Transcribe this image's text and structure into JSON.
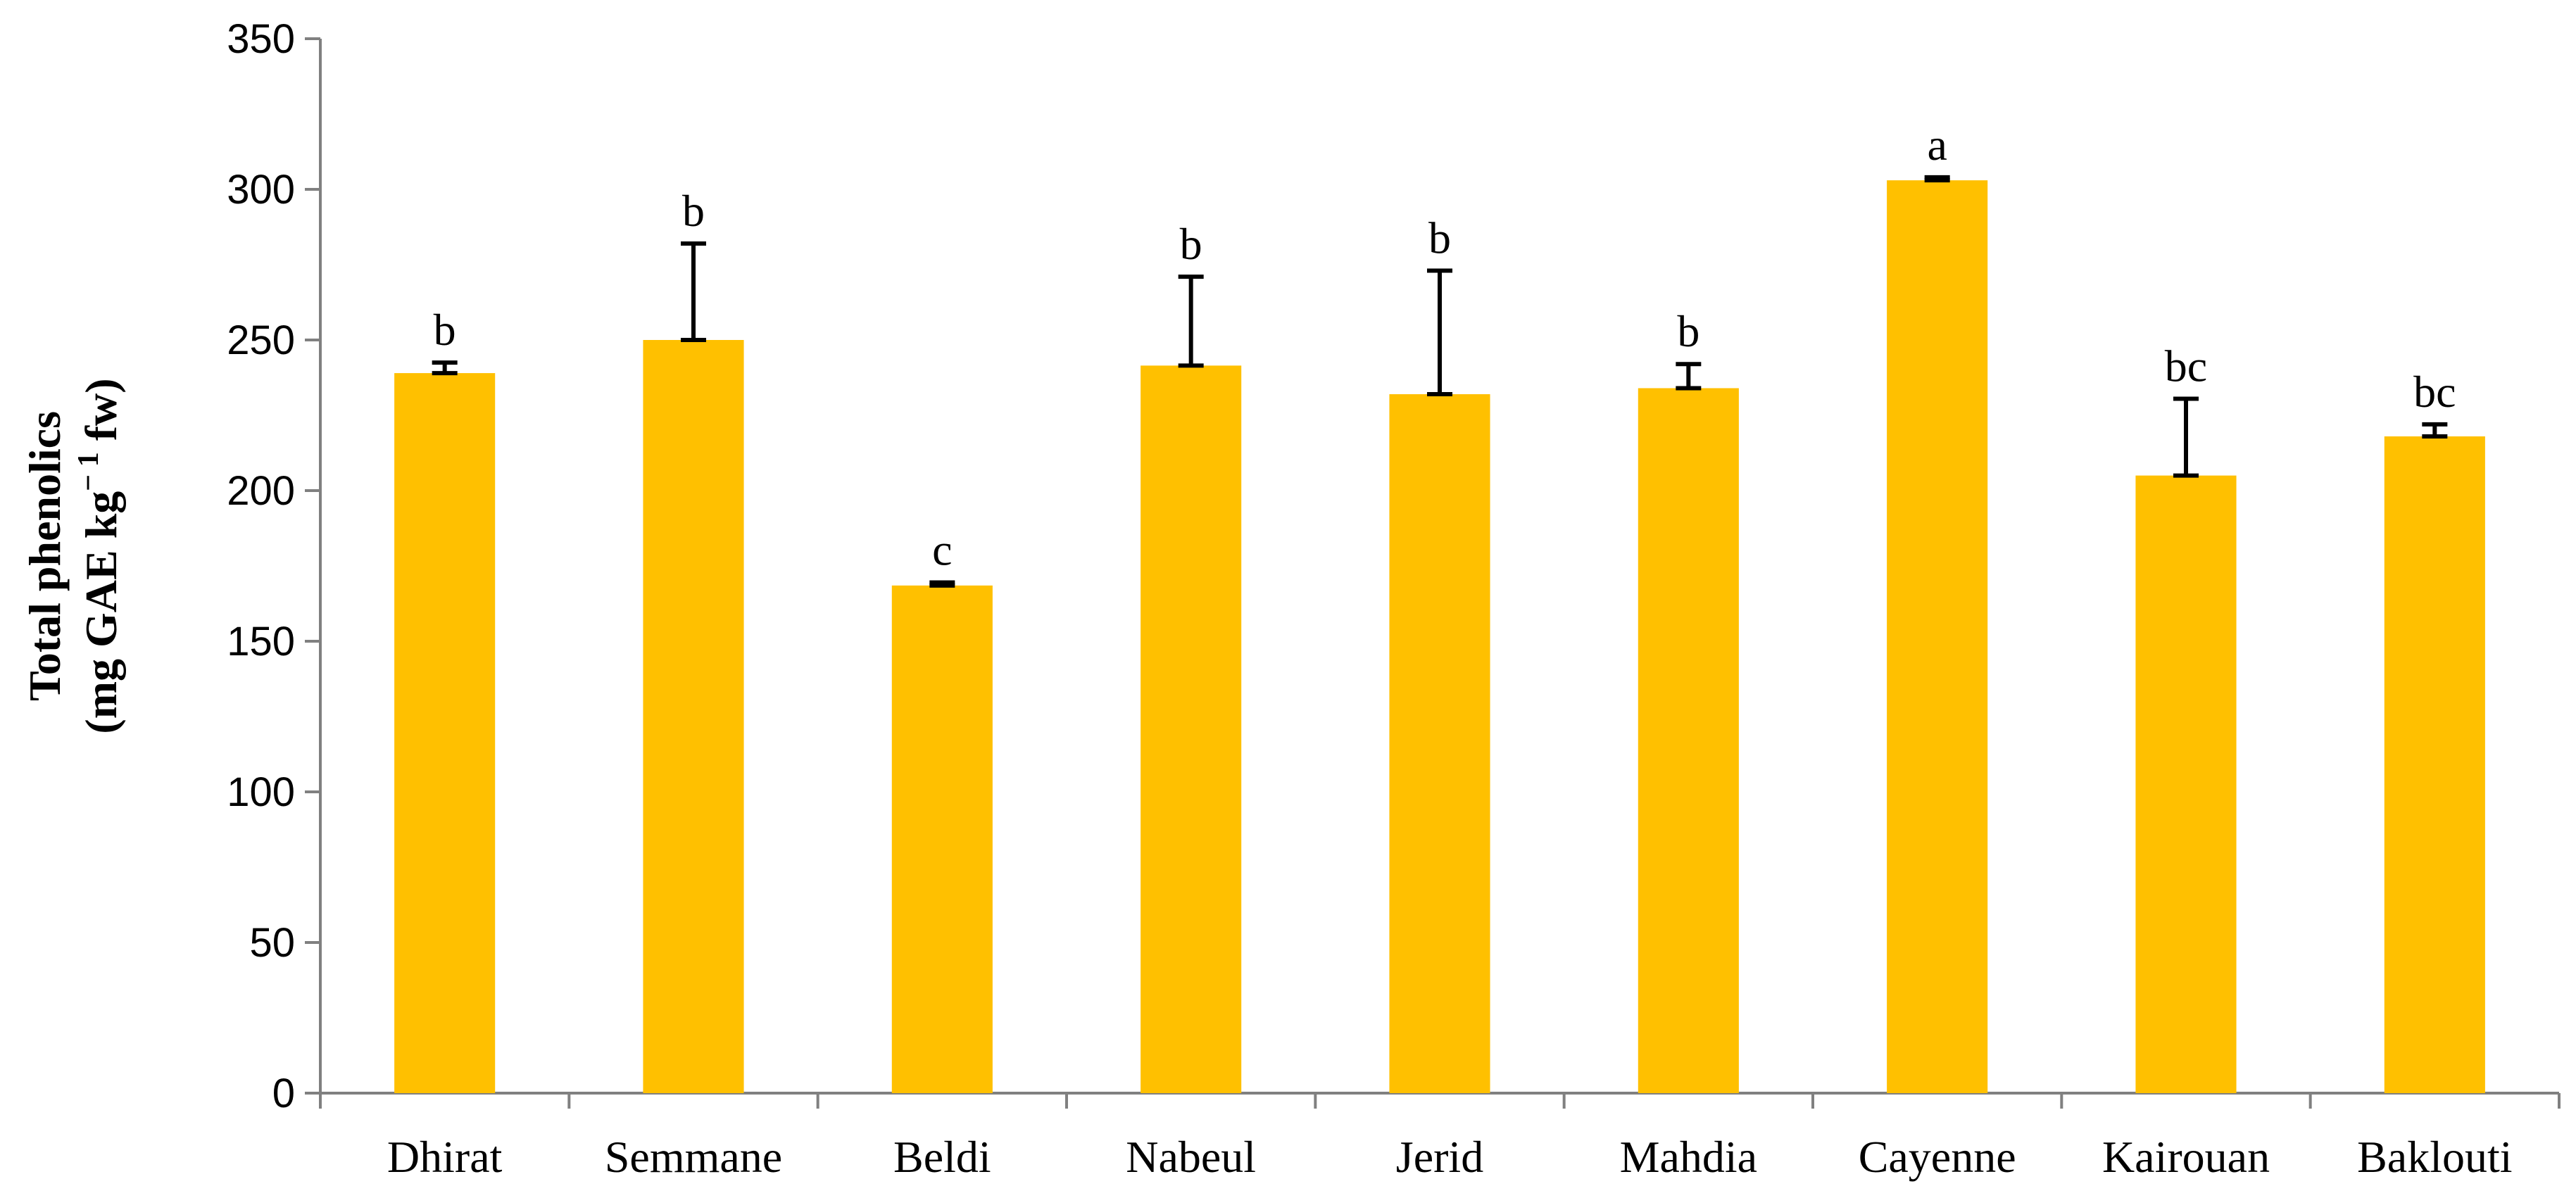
{
  "chart_data": {
    "type": "bar",
    "ylabel_line1": "Total phenolics",
    "ylabel_line2_prefix": "(mg GAE kg",
    "ylabel_line2_sup": "− 1",
    "ylabel_line2_suffix": " fw)",
    "ylim": [
      0,
      350
    ],
    "yticks": [
      0,
      50,
      100,
      150,
      200,
      250,
      300,
      350
    ],
    "grid": false,
    "bar_color": "#FFC000",
    "categories": [
      "Dhirat",
      "Semmane",
      "Beldi",
      "Nabeul",
      "Jerid",
      "Mahdia",
      "Cayenne",
      "Kairouan",
      "Baklouti"
    ],
    "values": [
      239,
      250,
      168.5,
      241.5,
      232,
      234,
      303,
      205,
      218
    ],
    "errors": [
      3.5,
      32,
      1,
      29.5,
      41,
      8,
      1,
      25.5,
      4
    ],
    "significance": [
      "b",
      "b",
      "c",
      "b",
      "b",
      "b",
      "a",
      "bc",
      "bc"
    ]
  }
}
